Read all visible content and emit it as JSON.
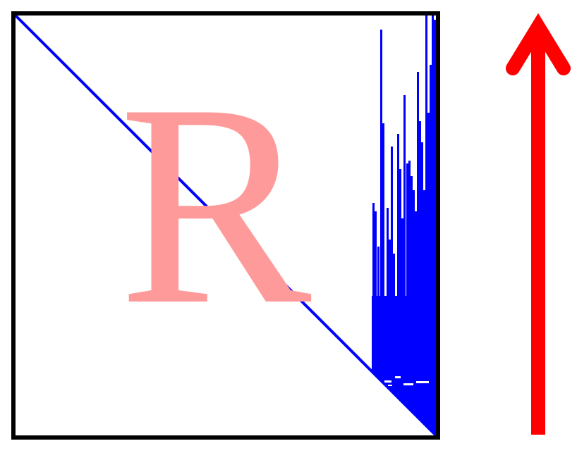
{
  "matrix": {
    "letter": "R",
    "letter_color": "#ff9a9a",
    "nonzero_color": "#0000ff",
    "frame_color": "#000000",
    "background": "#ffffff"
  },
  "arrow": {
    "direction": "up",
    "color": "#ff0000"
  }
}
